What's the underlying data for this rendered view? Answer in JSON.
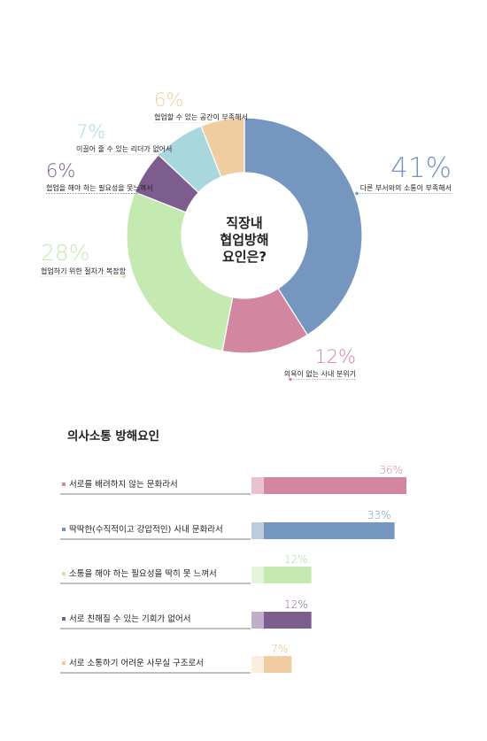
{
  "chart_data": [
    {
      "type": "pie",
      "title": "",
      "center_label": [
        "직장내",
        "협업방해",
        "요인은?"
      ],
      "slices": [
        {
          "label": "다른 부서와의 소통이 부족해서",
          "value": 41,
          "value_text": "41%",
          "color": "#7596be"
        },
        {
          "label": "의욕이 없는 사내 분위기",
          "value": 12,
          "value_text": "12%",
          "color": "#d3869f"
        },
        {
          "label": "협업하기 위한 절차가 복잡함",
          "value": 28,
          "value_text": "28%",
          "color": "#c4e9b1"
        },
        {
          "label": "협업을 해야 하는 필요성을 못느껴서",
          "value": 6,
          "value_text": "6%",
          "color": "#7d5d8d"
        },
        {
          "label": "이끌어 줄 수 있는 리더가 없어서",
          "value": 7,
          "value_text": "7%",
          "color": "#a9d7de"
        },
        {
          "label": "협업할 수 있는 공간이 부족해서",
          "value": 6,
          "value_text": "6%",
          "color": "#f0cca1"
        }
      ]
    },
    {
      "type": "bar",
      "title": "의사소통 방해요인",
      "orientation": "horizontal",
      "xlim": [
        0,
        36
      ],
      "categories": [
        "서로를 배려하지 않는 문화라서",
        "딱딱한(수직적이고 강압적인) 사내 문화라서",
        "소통을 해야 하는 필요성을 딱히 못 느껴서",
        "서로 친해질 수 있는 기회가 없어서",
        "서로 소통하기 어려운 사무실 구조로서"
      ],
      "values": [
        36,
        33,
        12,
        12,
        7
      ],
      "value_texts": [
        "36%",
        "33%",
        "12%",
        "12%",
        "7%"
      ],
      "colors": [
        "#d3869f",
        "#7596be",
        "#c4e9b1",
        "#7d5d8d",
        "#f0cca1"
      ],
      "light_colors": [
        "#e8c2ce",
        "#bcccdf",
        "#e4f5dc",
        "#bfb0c7",
        "#fbeedf"
      ],
      "value_text_colors": [
        "#d3869f",
        "#7596be",
        "#a5d98c",
        "#7d5d8d",
        "#e6b27a"
      ]
    }
  ]
}
